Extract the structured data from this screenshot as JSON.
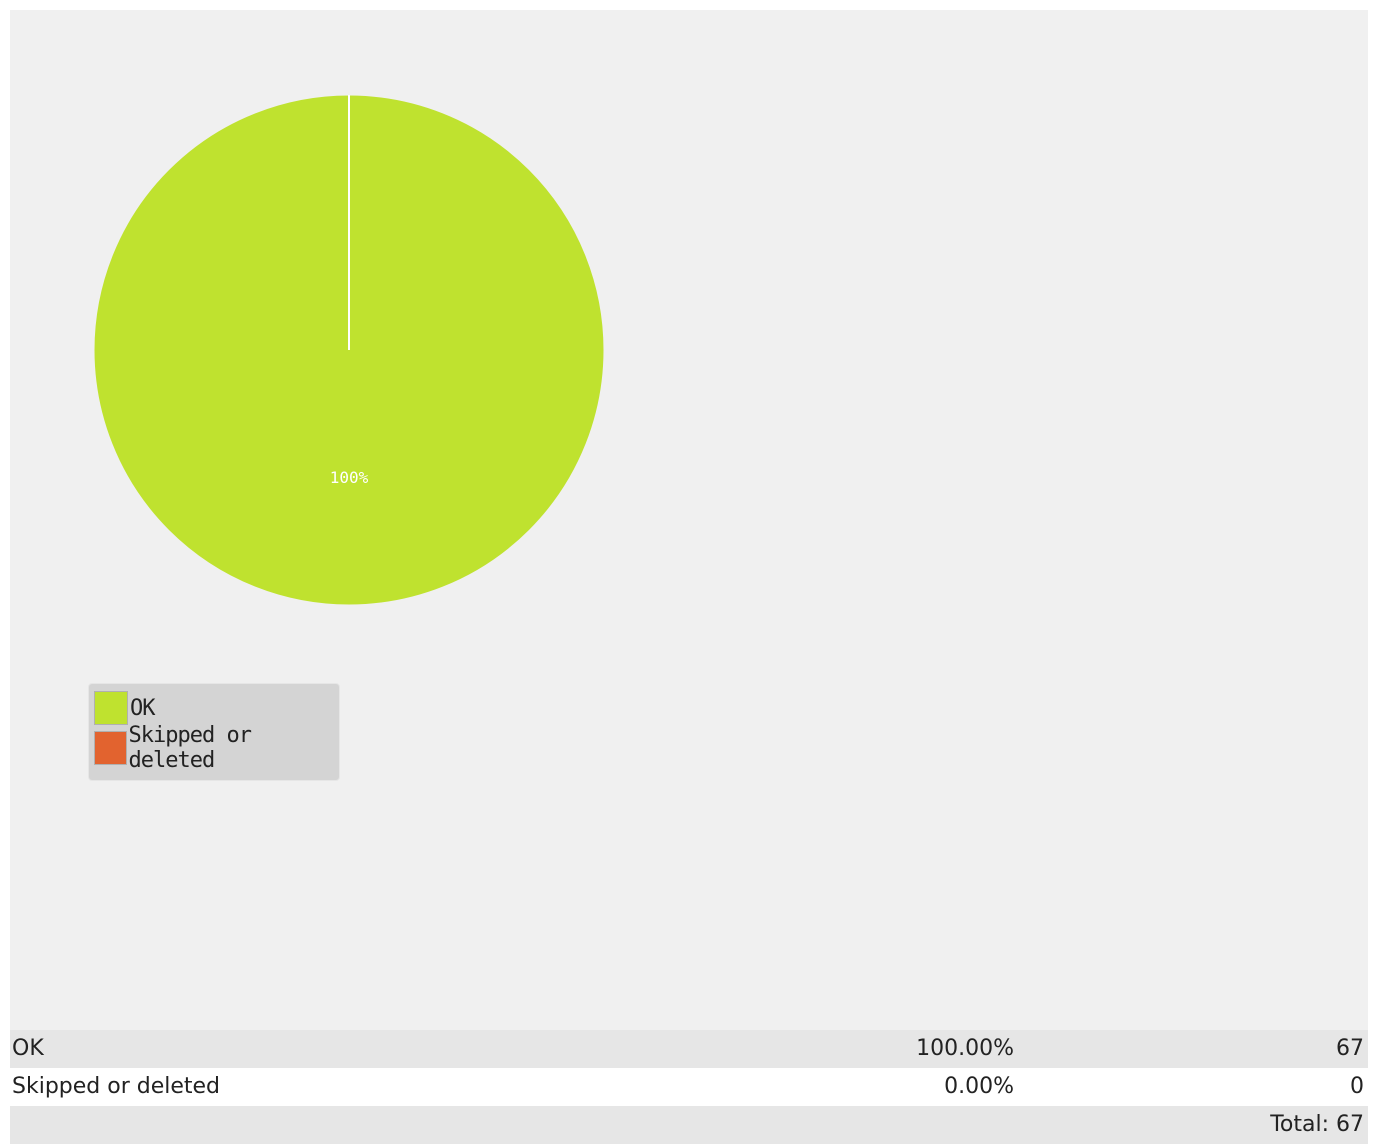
{
  "chart_data": {
    "type": "pie",
    "slices": [
      {
        "label": "OK",
        "value": 67,
        "percent": 100.0,
        "color": "#bfe22f"
      },
      {
        "label": "Skipped or deleted",
        "value": 0,
        "percent": 0.0,
        "color": "#e2632f"
      }
    ],
    "data_label": "100%",
    "legend_position": "bottom-left"
  },
  "legend": {
    "items": [
      {
        "label": "OK",
        "color": "#bfe22f"
      },
      {
        "label": "Skipped or deleted",
        "color": "#e2632f"
      }
    ]
  },
  "summary_table": {
    "rows": [
      {
        "label": "OK",
        "percent": "100.00%",
        "count": "67"
      },
      {
        "label": "Skipped or deleted",
        "percent": "0.00%",
        "count": "0"
      }
    ],
    "total": "Total: 67"
  }
}
